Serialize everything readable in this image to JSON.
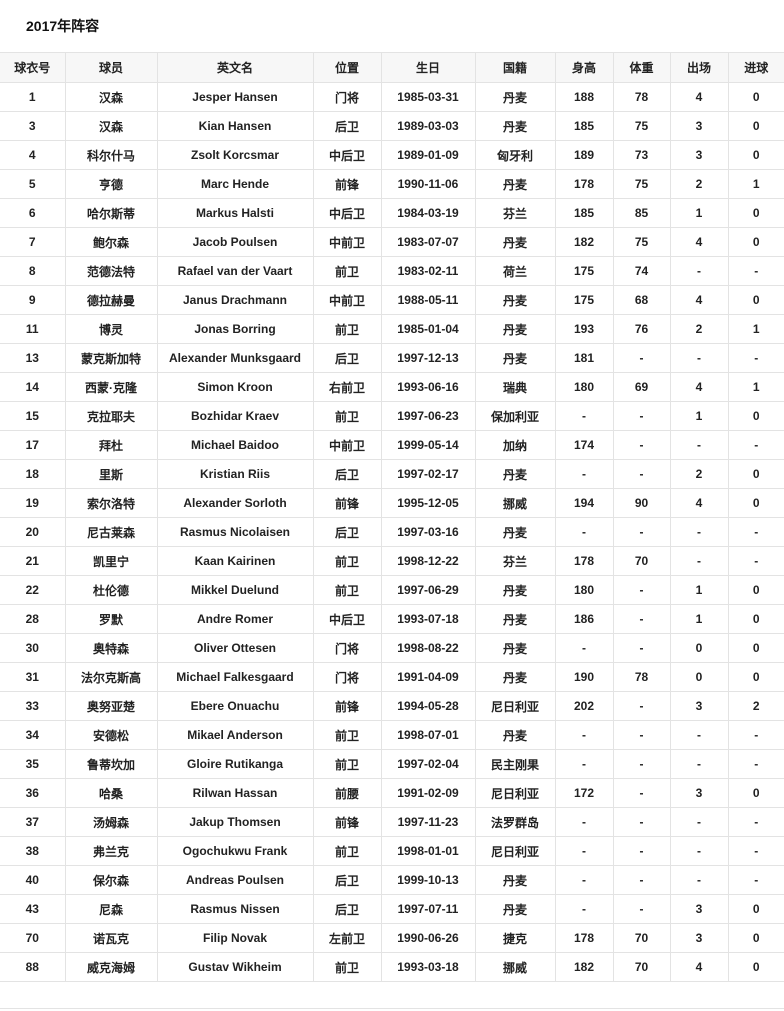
{
  "title": "2017年阵容",
  "columns": [
    "球衣号",
    "球员",
    "英文名",
    "位置",
    "生日",
    "国籍",
    "身高",
    "体重",
    "出场",
    "进球"
  ],
  "rows": [
    [
      "1",
      "汉森",
      "Jesper Hansen",
      "门将",
      "1985-03-31",
      "丹麦",
      "188",
      "78",
      "4",
      "0"
    ],
    [
      "3",
      "汉森",
      "Kian Hansen",
      "后卫",
      "1989-03-03",
      "丹麦",
      "185",
      "75",
      "3",
      "0"
    ],
    [
      "4",
      "科尔什马",
      "Zsolt Korcsmar",
      "中后卫",
      "1989-01-09",
      "匈牙利",
      "189",
      "73",
      "3",
      "0"
    ],
    [
      "5",
      "亨德",
      "Marc Hende",
      "前锋",
      "1990-11-06",
      "丹麦",
      "178",
      "75",
      "2",
      "1"
    ],
    [
      "6",
      "哈尔斯蒂",
      "Markus Halsti",
      "中后卫",
      "1984-03-19",
      "芬兰",
      "185",
      "85",
      "1",
      "0"
    ],
    [
      "7",
      "鲍尔森",
      "Jacob Poulsen",
      "中前卫",
      "1983-07-07",
      "丹麦",
      "182",
      "75",
      "4",
      "0"
    ],
    [
      "8",
      "范德法特",
      "Rafael van der Vaart",
      "前卫",
      "1983-02-11",
      "荷兰",
      "175",
      "74",
      "-",
      "-"
    ],
    [
      "9",
      "德拉赫曼",
      "Janus Drachmann",
      "中前卫",
      "1988-05-11",
      "丹麦",
      "175",
      "68",
      "4",
      "0"
    ],
    [
      "11",
      "博灵",
      "Jonas Borring",
      "前卫",
      "1985-01-04",
      "丹麦",
      "193",
      "76",
      "2",
      "1"
    ],
    [
      "13",
      "蒙克斯加特",
      "Alexander Munksgaard",
      "后卫",
      "1997-12-13",
      "丹麦",
      "181",
      "-",
      "-",
      "-"
    ],
    [
      "14",
      "西蒙·克隆",
      "Simon Kroon",
      "右前卫",
      "1993-06-16",
      "瑞典",
      "180",
      "69",
      "4",
      "1"
    ],
    [
      "15",
      "克拉耶夫",
      "Bozhidar Kraev",
      "前卫",
      "1997-06-23",
      "保加利亚",
      "-",
      "-",
      "1",
      "0"
    ],
    [
      "17",
      "拜杜",
      "Michael Baidoo",
      "中前卫",
      "1999-05-14",
      "加纳",
      "174",
      "-",
      "-",
      "-"
    ],
    [
      "18",
      "里斯",
      "Kristian Riis",
      "后卫",
      "1997-02-17",
      "丹麦",
      "-",
      "-",
      "2",
      "0"
    ],
    [
      "19",
      "索尔洛特",
      "Alexander Sorloth",
      "前锋",
      "1995-12-05",
      "挪威",
      "194",
      "90",
      "4",
      "0"
    ],
    [
      "20",
      "尼古莱森",
      "Rasmus Nicolaisen",
      "后卫",
      "1997-03-16",
      "丹麦",
      "-",
      "-",
      "-",
      "-"
    ],
    [
      "21",
      "凯里宁",
      "Kaan Kairinen",
      "前卫",
      "1998-12-22",
      "芬兰",
      "178",
      "70",
      "-",
      "-"
    ],
    [
      "22",
      "杜伦德",
      "Mikkel Duelund",
      "前卫",
      "1997-06-29",
      "丹麦",
      "180",
      "-",
      "1",
      "0"
    ],
    [
      "28",
      "罗默",
      "Andre Romer",
      "中后卫",
      "1993-07-18",
      "丹麦",
      "186",
      "-",
      "1",
      "0"
    ],
    [
      "30",
      "奥特森",
      "Oliver Ottesen",
      "门将",
      "1998-08-22",
      "丹麦",
      "-",
      "-",
      "0",
      "0"
    ],
    [
      "31",
      "法尔克斯高",
      "Michael Falkesgaard",
      "门将",
      "1991-04-09",
      "丹麦",
      "190",
      "78",
      "0",
      "0"
    ],
    [
      "33",
      "奥努亚楚",
      "Ebere Onuachu",
      "前锋",
      "1994-05-28",
      "尼日利亚",
      "202",
      "-",
      "3",
      "2"
    ],
    [
      "34",
      "安德松",
      "Mikael Anderson",
      "前卫",
      "1998-07-01",
      "丹麦",
      "-",
      "-",
      "-",
      "-"
    ],
    [
      "35",
      "鲁蒂坎加",
      "Gloire Rutikanga",
      "前卫",
      "1997-02-04",
      "民主刚果",
      "-",
      "-",
      "-",
      "-"
    ],
    [
      "36",
      "哈桑",
      "Rilwan Hassan",
      "前腰",
      "1991-02-09",
      "尼日利亚",
      "172",
      "-",
      "3",
      "0"
    ],
    [
      "37",
      "汤姆森",
      "Jakup Thomsen",
      "前锋",
      "1997-11-23",
      "法罗群岛",
      "-",
      "-",
      "-",
      "-"
    ],
    [
      "38",
      "弗兰克",
      "Ogochukwu Frank",
      "前卫",
      "1998-01-01",
      "尼日利亚",
      "-",
      "-",
      "-",
      "-"
    ],
    [
      "40",
      "保尔森",
      "Andreas Poulsen",
      "后卫",
      "1999-10-13",
      "丹麦",
      "-",
      "-",
      "-",
      "-"
    ],
    [
      "43",
      "尼森",
      "Rasmus Nissen",
      "后卫",
      "1997-07-11",
      "丹麦",
      "-",
      "-",
      "3",
      "0"
    ],
    [
      "70",
      "诺瓦克",
      "Filip Novak",
      "左前卫",
      "1990-06-26",
      "捷克",
      "178",
      "70",
      "3",
      "0"
    ],
    [
      "88",
      "威克海姆",
      "Gustav Wikheim",
      "前卫",
      "1993-03-18",
      "挪威",
      "182",
      "70",
      "4",
      "0"
    ]
  ]
}
